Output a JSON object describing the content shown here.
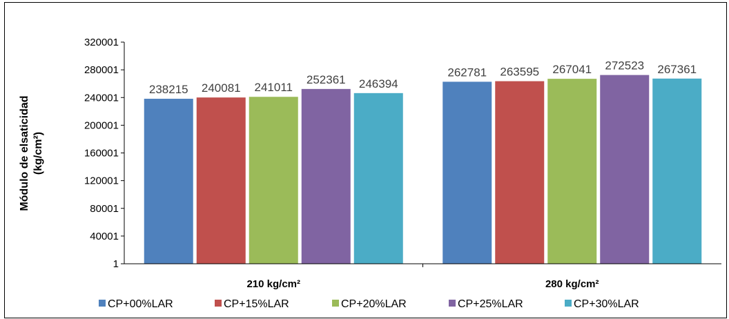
{
  "chart_data": {
    "type": "bar",
    "title": "",
    "ylabel": "Módulo de elsaticidad (kg/cm²)",
    "ylabel_lines": [
      "Módulo de elsaticidad",
      "(kg/cm²)"
    ],
    "xlabel": "",
    "categories": [
      "210 kg/cm²",
      "280 kg/cm²"
    ],
    "ylim": [
      1,
      320001
    ],
    "yticks": [
      1,
      40001,
      80001,
      120001,
      160001,
      200001,
      240001,
      280001,
      320001
    ],
    "grid": false,
    "legend_position": "bottom",
    "series": [
      {
        "name": "CP+00%LAR",
        "color": "#4F81BD",
        "values": [
          238215,
          262781
        ]
      },
      {
        "name": "CP+15%LAR",
        "color": "#C0504D",
        "values": [
          240081,
          263595
        ]
      },
      {
        "name": "CP+20%LAR",
        "color": "#9BBB59",
        "values": [
          241011,
          267041
        ]
      },
      {
        "name": "CP+25%LAR",
        "color": "#8064A2",
        "values": [
          252361,
          272523
        ]
      },
      {
        "name": "CP+30%LAR",
        "color": "#4BACC6",
        "values": [
          246394,
          267361
        ]
      }
    ]
  }
}
